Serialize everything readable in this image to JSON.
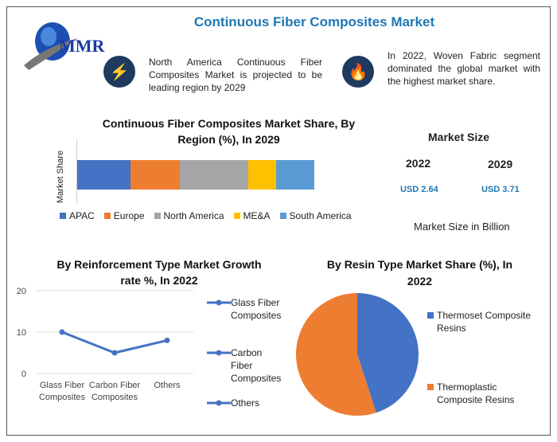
{
  "header": {
    "title": "Continuous Fiber Composites Market",
    "logo_text": "MMR"
  },
  "highlights": [
    {
      "icon": "lightning-icon",
      "text": "North America Continuous Fiber Composites Market is projected to be leading region by 2029"
    },
    {
      "icon": "flame-icon",
      "text": "In 2022, Woven Fabric segment dominated the global market with the highest market share."
    }
  ],
  "market_size": {
    "title": "Market Size",
    "years": [
      {
        "year": "2022",
        "value": "USD 2.64"
      },
      {
        "year": "2029",
        "value": "USD 3.71"
      }
    ],
    "unit_note": "Market Size in Billion"
  },
  "chart_data": [
    {
      "type": "bar",
      "stacked": true,
      "orientation": "horizontal",
      "title": "Continuous Fiber Composites Market Share, By Region (%), In 2029",
      "ylabel": "Market Share",
      "series": [
        {
          "name": "APAC",
          "value": 22.5,
          "color": "#4472c4"
        },
        {
          "name": "Europe",
          "value": 20.8,
          "color": "#ed7d31"
        },
        {
          "name": "North America",
          "value": 28.9,
          "color": "#a5a5a5"
        },
        {
          "name": "ME&A",
          "value": 11.7,
          "color": "#ffc000"
        },
        {
          "name": "South America",
          "value": 16.1,
          "color": "#5b9bd5"
        }
      ],
      "legend": "bottom"
    },
    {
      "type": "line",
      "title": "By Reinforcement Type Market Growth rate %, In 2022",
      "categories": [
        "Glass Fiber Composites",
        "Carbon Fiber Composites",
        "Others"
      ],
      "values": [
        10,
        5,
        8
      ],
      "ylim": [
        0,
        20
      ],
      "yticks": [
        "0",
        "10",
        "20"
      ],
      "color": "#4472c4",
      "legend": "right",
      "legend_entries": [
        "Glass Fiber Composites",
        "Carbon Fiber Composites",
        "Others"
      ]
    },
    {
      "type": "pie",
      "title": "By Resin Type Market Share (%), In 2022",
      "slices": [
        {
          "name": "Thermoset Composite Resins",
          "value": 45,
          "color": "#4472c4"
        },
        {
          "name": "Thermoplastic Composite Resins",
          "value": 55,
          "color": "#ed7d31"
        }
      ],
      "legend": "right"
    }
  ]
}
